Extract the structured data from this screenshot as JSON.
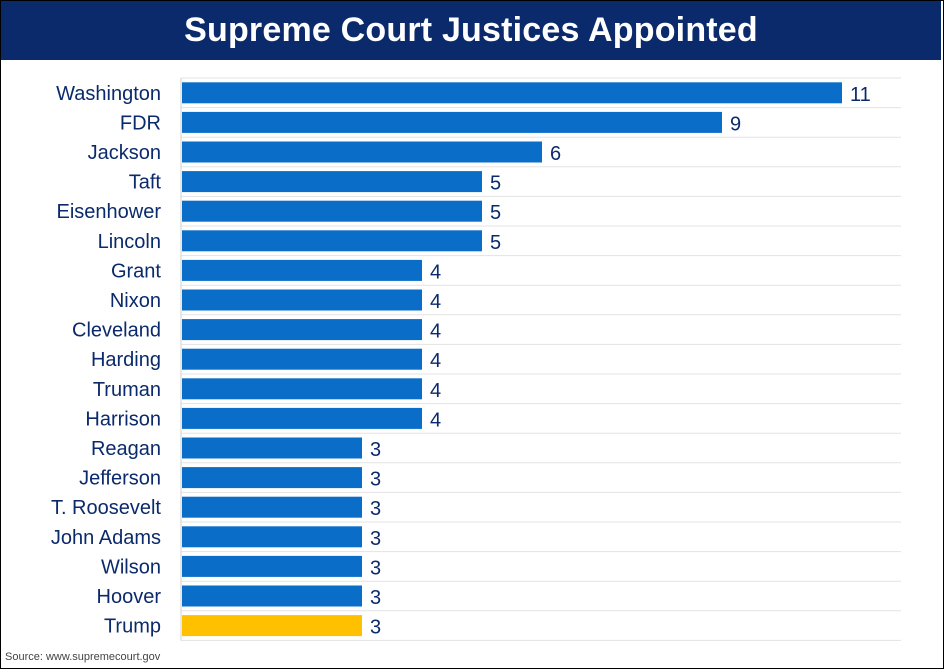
{
  "title": "Supreme Court Justices Appointed",
  "source": "Source: www.supremecourt.gov",
  "colors": {
    "title_bg": "#0b2a6b",
    "bar": "#0a6ec9",
    "highlight_bar": "#ffc000",
    "text": "#0b2a6b"
  },
  "chart_data": {
    "type": "bar",
    "orientation": "horizontal",
    "title": "Supreme Court Justices Appointed",
    "xlabel": "",
    "ylabel": "",
    "xlim": [
      0,
      12
    ],
    "grid": "horizontal row lines",
    "legend": "none",
    "highlight": "Trump",
    "categories": [
      "Washington",
      "FDR",
      "Jackson",
      "Taft",
      "Eisenhower",
      "Lincoln",
      "Grant",
      "Nixon",
      "Cleveland",
      "Harding",
      "Truman",
      "Harrison",
      "Reagan",
      "Jefferson",
      "T. Roosevelt",
      "John Adams",
      "Wilson",
      "Hoover",
      "Trump"
    ],
    "values": [
      11,
      9,
      6,
      5,
      5,
      5,
      4,
      4,
      4,
      4,
      4,
      4,
      3,
      3,
      3,
      3,
      3,
      3,
      3
    ]
  }
}
